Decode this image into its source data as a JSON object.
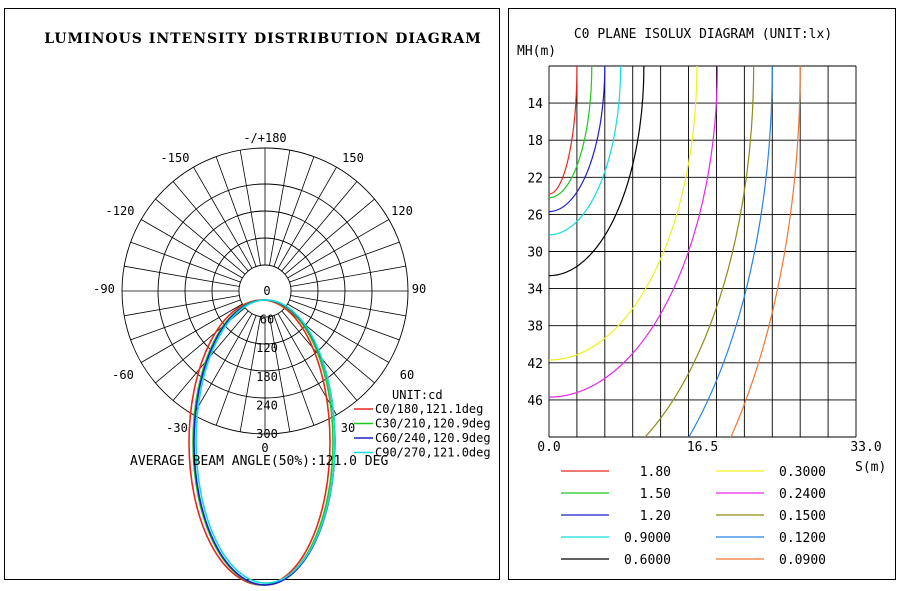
{
  "chart_data": [
    {
      "type": "polar",
      "title": "LUMINOUS INTENSITY DISTRIBUTION DIAGRAM",
      "angle_labels": [
        "-/+180",
        "-150",
        "150",
        "-120",
        "120",
        "-90",
        "90",
        "-60",
        "60",
        "-30",
        "30",
        "0"
      ],
      "radial_ticks": [
        "0",
        "60",
        "120",
        "180",
        "240",
        "300"
      ],
      "radial_max": 300,
      "unit_label": "UNIT:cd",
      "footer": "AVERAGE BEAM ANGLE(50%):121.0 DEG",
      "series": [
        {
          "name": "C0/180,121.1deg",
          "color": "#e8281e",
          "a_left": 73,
          "a_right": 68,
          "b": 150,
          "shift": -3
        },
        {
          "name": "C30/210,120.9deg",
          "color": "#1ec81e",
          "a_left": 71,
          "a_right": 69,
          "b": 150,
          "shift": -1
        },
        {
          "name": "C60/240,120.9deg",
          "color": "#1e1ecc",
          "a_left": 71,
          "a_right": 70,
          "b": 150,
          "shift": 0
        },
        {
          "name": "C90/270,121.0deg",
          "color": "#14dcdc",
          "a_left": 70,
          "a_right": 69,
          "b": 149,
          "shift": 1
        }
      ]
    },
    {
      "type": "contour",
      "title": "C0 PLANE ISOLUX DIAGRAM (UNIT:lx)",
      "ylabel": "MH(m)",
      "xlabel": "S(m)",
      "y_ticks": [
        "14",
        "18",
        "22",
        "26",
        "30",
        "34",
        "38",
        "42",
        "46"
      ],
      "x_ticks": [
        "0.0",
        "16.5",
        "33.0"
      ],
      "xlim": [
        0,
        33
      ],
      "ylim": [
        10,
        50
      ],
      "levels": [
        {
          "value": "1.80",
          "color": "#e8281e",
          "rx": 3.0,
          "ry": 13.8
        },
        {
          "value": "1.50",
          "color": "#1ec81e",
          "rx": 4.6,
          "ry": 14.2
        },
        {
          "value": "1.20",
          "color": "#1e1ecc",
          "rx": 6.0,
          "ry": 15.7
        },
        {
          "value": "0.9000",
          "color": "#14dcdc",
          "rx": 7.7,
          "ry": 18.2
        },
        {
          "value": "0.6000",
          "color": "#000000",
          "rx": 10.2,
          "ry": 22.6
        },
        {
          "value": "0.3000",
          "color": "#f0f01e",
          "rx": 15.9,
          "ry": 31.7
        },
        {
          "value": "0.2400",
          "color": "#e628e6",
          "rx": 18.1,
          "ry": 35.7
        },
        {
          "value": "0.1500",
          "color": "#8c8c14",
          "rx": 22.0,
          "ry": 45.3
        },
        {
          "value": "0.1200",
          "color": "#2882e6",
          "rx": 24.0,
          "ry": 51.3
        },
        {
          "value": "0.0900",
          "color": "#f07832",
          "rx": 27.0,
          "ry": 58.0
        }
      ]
    }
  ]
}
